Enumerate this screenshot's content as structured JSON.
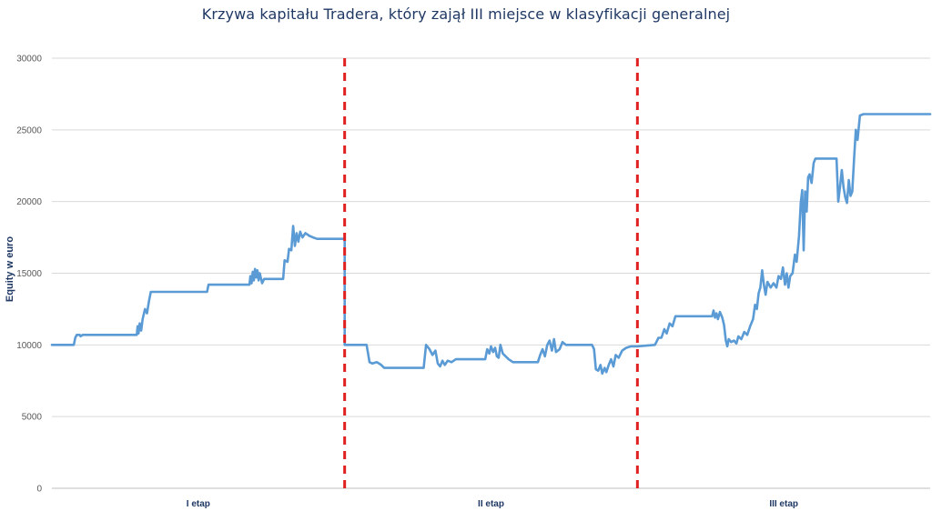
{
  "chart_data": {
    "type": "line",
    "title": "Krzywa kapitału Tradera, który zajął III miejsce w klasyfikacji generalnej",
    "ylabel": "Equity w euro",
    "ylim": [
      0,
      30000
    ],
    "yticks": [
      0,
      5000,
      10000,
      15000,
      20000,
      25000,
      30000
    ],
    "grid": true,
    "colors": {
      "line": "#5b9bd5",
      "divider": "#e02020",
      "grid": "#d9d9d9"
    },
    "stage_labels": [
      "I etap",
      "II etap",
      "III etap"
    ],
    "stage_boundaries": [
      1,
      2
    ],
    "x_range": [
      0,
      3
    ],
    "series": [
      {
        "points": [
          [
            0.0,
            10000
          ],
          [
            0.075,
            10000
          ],
          [
            0.08,
            10500
          ],
          [
            0.085,
            10700
          ],
          [
            0.095,
            10700
          ],
          [
            0.098,
            10600
          ],
          [
            0.105,
            10700
          ],
          [
            0.29,
            10700
          ],
          [
            0.293,
            11300
          ],
          [
            0.296,
            10800
          ],
          [
            0.3,
            11500
          ],
          [
            0.305,
            11000
          ],
          [
            0.31,
            11800
          ],
          [
            0.318,
            12500
          ],
          [
            0.325,
            12200
          ],
          [
            0.332,
            13100
          ],
          [
            0.338,
            13700
          ],
          [
            0.53,
            13700
          ],
          [
            0.535,
            14200
          ],
          [
            0.675,
            14200
          ],
          [
            0.678,
            14800
          ],
          [
            0.682,
            14300
          ],
          [
            0.686,
            15100
          ],
          [
            0.69,
            14500
          ],
          [
            0.694,
            15300
          ],
          [
            0.698,
            14700
          ],
          [
            0.702,
            15200
          ],
          [
            0.706,
            14500
          ],
          [
            0.71,
            15000
          ],
          [
            0.718,
            14300
          ],
          [
            0.725,
            14600
          ],
          [
            0.79,
            14600
          ],
          [
            0.795,
            15900
          ],
          [
            0.805,
            15800
          ],
          [
            0.81,
            16700
          ],
          [
            0.818,
            16600
          ],
          [
            0.824,
            18300
          ],
          [
            0.83,
            16900
          ],
          [
            0.836,
            17800
          ],
          [
            0.842,
            17200
          ],
          [
            0.848,
            17900
          ],
          [
            0.856,
            17500
          ],
          [
            0.866,
            17800
          ],
          [
            0.88,
            17600
          ],
          [
            0.892,
            17500
          ],
          [
            0.906,
            17400
          ],
          [
            1.0,
            17400
          ],
          [
            1.0,
            10000
          ],
          [
            1.075,
            10000
          ],
          [
            1.085,
            8800
          ],
          [
            1.095,
            8700
          ],
          [
            1.11,
            8800
          ],
          [
            1.125,
            8600
          ],
          [
            1.135,
            8400
          ],
          [
            1.27,
            8400
          ],
          [
            1.278,
            10000
          ],
          [
            1.29,
            9700
          ],
          [
            1.3,
            9300
          ],
          [
            1.31,
            9600
          ],
          [
            1.318,
            8700
          ],
          [
            1.326,
            8500
          ],
          [
            1.334,
            8900
          ],
          [
            1.342,
            8600
          ],
          [
            1.352,
            8900
          ],
          [
            1.365,
            8800
          ],
          [
            1.38,
            9000
          ],
          [
            1.48,
            9000
          ],
          [
            1.487,
            9700
          ],
          [
            1.494,
            9400
          ],
          [
            1.5,
            9900
          ],
          [
            1.507,
            9500
          ],
          [
            1.514,
            9800
          ],
          [
            1.52,
            9200
          ],
          [
            1.526,
            9100
          ],
          [
            1.532,
            10000
          ],
          [
            1.54,
            9400
          ],
          [
            1.55,
            9200
          ],
          [
            1.56,
            9000
          ],
          [
            1.575,
            8800
          ],
          [
            1.66,
            8800
          ],
          [
            1.668,
            9300
          ],
          [
            1.676,
            9700
          ],
          [
            1.684,
            9200
          ],
          [
            1.692,
            10000
          ],
          [
            1.7,
            10300
          ],
          [
            1.708,
            9600
          ],
          [
            1.715,
            10400
          ],
          [
            1.722,
            9500
          ],
          [
            1.734,
            9700
          ],
          [
            1.744,
            10200
          ],
          [
            1.756,
            10000
          ],
          [
            1.845,
            10000
          ],
          [
            1.852,
            9700
          ],
          [
            1.858,
            8300
          ],
          [
            1.866,
            8200
          ],
          [
            1.874,
            8600
          ],
          [
            1.88,
            8000
          ],
          [
            1.888,
            8400
          ],
          [
            1.894,
            8100
          ],
          [
            1.902,
            8600
          ],
          [
            1.91,
            9000
          ],
          [
            1.918,
            8500
          ],
          [
            1.926,
            9300
          ],
          [
            1.936,
            9100
          ],
          [
            1.948,
            9600
          ],
          [
            1.962,
            9800
          ],
          [
            1.978,
            9900
          ],
          [
            2.0,
            9900
          ],
          [
            2.06,
            10000
          ],
          [
            2.072,
            10500
          ],
          [
            2.082,
            10500
          ],
          [
            2.092,
            11100
          ],
          [
            2.1,
            10800
          ],
          [
            2.11,
            11500
          ],
          [
            2.12,
            11300
          ],
          [
            2.13,
            12000
          ],
          [
            2.255,
            12000
          ],
          [
            2.26,
            12400
          ],
          [
            2.265,
            11900
          ],
          [
            2.27,
            12200
          ],
          [
            2.275,
            11800
          ],
          [
            2.282,
            12300
          ],
          [
            2.29,
            11900
          ],
          [
            2.296,
            11400
          ],
          [
            2.302,
            10300
          ],
          [
            2.307,
            9900
          ],
          [
            2.312,
            10400
          ],
          [
            2.32,
            10200
          ],
          [
            2.33,
            10300
          ],
          [
            2.338,
            10100
          ],
          [
            2.345,
            10600
          ],
          [
            2.355,
            10400
          ],
          [
            2.365,
            10900
          ],
          [
            2.375,
            10700
          ],
          [
            2.385,
            11300
          ],
          [
            2.395,
            11800
          ],
          [
            2.402,
            12800
          ],
          [
            2.408,
            12500
          ],
          [
            2.414,
            13600
          ],
          [
            2.42,
            14000
          ],
          [
            2.426,
            15200
          ],
          [
            2.432,
            14200
          ],
          [
            2.438,
            13500
          ],
          [
            2.444,
            14400
          ],
          [
            2.455,
            14000
          ],
          [
            2.465,
            14300
          ],
          [
            2.475,
            14000
          ],
          [
            2.482,
            14800
          ],
          [
            2.49,
            14600
          ],
          [
            2.497,
            15400
          ],
          [
            2.504,
            14200
          ],
          [
            2.51,
            15000
          ],
          [
            2.516,
            14000
          ],
          [
            2.522,
            14800
          ],
          [
            2.53,
            15000
          ],
          [
            2.538,
            16300
          ],
          [
            2.544,
            15800
          ],
          [
            2.552,
            17600
          ],
          [
            2.558,
            19900
          ],
          [
            2.563,
            20800
          ],
          [
            2.568,
            16600
          ],
          [
            2.573,
            20700
          ],
          [
            2.578,
            19300
          ],
          [
            2.583,
            21700
          ],
          [
            2.588,
            21900
          ],
          [
            2.595,
            21300
          ],
          [
            2.602,
            22700
          ],
          [
            2.608,
            23000
          ],
          [
            2.68,
            23000
          ],
          [
            2.686,
            20000
          ],
          [
            2.692,
            21000
          ],
          [
            2.698,
            22200
          ],
          [
            2.704,
            21000
          ],
          [
            2.71,
            20300
          ],
          [
            2.716,
            19900
          ],
          [
            2.722,
            21500
          ],
          [
            2.728,
            20400
          ],
          [
            2.734,
            20700
          ],
          [
            2.74,
            23000
          ],
          [
            2.746,
            25000
          ],
          [
            2.752,
            24300
          ],
          [
            2.76,
            26000
          ],
          [
            2.772,
            26100
          ],
          [
            3.0,
            26100
          ]
        ]
      }
    ]
  }
}
